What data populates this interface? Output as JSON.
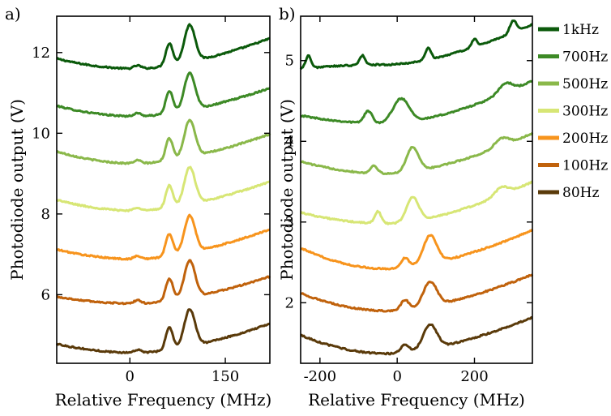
{
  "chart_data": [
    {
      "type": "line",
      "panel_label": "a)",
      "xlabel": "Relative Frequency (MHz)",
      "ylabel": "Photodiode output (V)",
      "xlim": [
        -115,
        220
      ],
      "ylim": [
        4.3,
        12.9
      ],
      "xticks": [
        0,
        150
      ],
      "yticks": [
        6,
        8,
        10,
        12
      ],
      "series": [
        {
          "name": "1kHz",
          "color": "#0b5a0b",
          "base": 11.6,
          "start": 11.85,
          "end": 12.35,
          "peaks": [
            [
              12,
              0.08,
              8
            ],
            [
              62,
              0.55,
              8
            ],
            [
              94,
              0.92,
              12
            ]
          ]
        },
        {
          "name": "700Hz",
          "color": "#3d8a26",
          "base": 10.42,
          "start": 10.68,
          "end": 11.12,
          "peaks": [
            [
              12,
              0.08,
              8
            ],
            [
              62,
              0.55,
              8
            ],
            [
              94,
              0.92,
              12
            ]
          ]
        },
        {
          "name": "500Hz",
          "color": "#8ab84a",
          "base": 9.25,
          "start": 9.55,
          "end": 9.98,
          "peaks": [
            [
              12,
              0.08,
              8
            ],
            [
              62,
              0.55,
              8
            ],
            [
              94,
              0.92,
              12
            ]
          ]
        },
        {
          "name": "300Hz",
          "color": "#d7e675",
          "base": 8.08,
          "start": 8.35,
          "end": 8.8,
          "peaks": [
            [
              12,
              0.08,
              8
            ],
            [
              62,
              0.55,
              8
            ],
            [
              94,
              0.92,
              12
            ]
          ]
        },
        {
          "name": "200Hz",
          "color": "#f7941d",
          "base": 6.88,
          "start": 7.12,
          "end": 7.62,
          "peaks": [
            [
              12,
              0.08,
              8
            ],
            [
              62,
              0.55,
              8
            ],
            [
              94,
              0.92,
              12
            ]
          ]
        },
        {
          "name": "100Hz",
          "color": "#c0620c",
          "base": 5.78,
          "start": 5.95,
          "end": 6.45,
          "peaks": [
            [
              12,
              0.08,
              8
            ],
            [
              62,
              0.55,
              8
            ],
            [
              94,
              0.92,
              12
            ]
          ]
        },
        {
          "name": "80Hz",
          "color": "#5a3a0a",
          "base": 4.56,
          "start": 4.78,
          "end": 5.28,
          "peaks": [
            [
              12,
              0.08,
              8
            ],
            [
              62,
              0.55,
              8
            ],
            [
              94,
              0.92,
              12
            ]
          ]
        }
      ]
    },
    {
      "type": "line",
      "panel_label": "b)",
      "xlabel": "Relative Frequency (MHz)",
      "ylabel": "Photodiode output (V)",
      "xlim": [
        -250,
        350
      ],
      "ylim": [
        1.25,
        5.55
      ],
      "xticks": [
        -200,
        0,
        200
      ],
      "yticks": [
        2,
        3,
        4,
        5
      ],
      "series": [
        {
          "name": "1kHz",
          "color": "#0b5a0b",
          "base": 4.95,
          "start": 4.9,
          "end": 5.45,
          "peaks": [
            [
              -230,
              0.15,
              10
            ],
            [
              -90,
              0.12,
              10
            ],
            [
              80,
              0.15,
              10
            ],
            [
              200,
              0.1,
              10
            ],
            [
              300,
              0.15,
              12
            ]
          ]
        },
        {
          "name": "700Hz",
          "color": "#3d8a26",
          "base": 4.22,
          "start": 4.32,
          "end": 4.75,
          "peaks": [
            [
              -75,
              0.15,
              15
            ],
            [
              10,
              0.3,
              30
            ],
            [
              280,
              0.12,
              25
            ]
          ]
        },
        {
          "name": "500Hz",
          "color": "#8ab84a",
          "base": 3.6,
          "start": 3.75,
          "end": 4.1,
          "peaks": [
            [
              -60,
              0.1,
              12
            ],
            [
              40,
              0.3,
              22
            ],
            [
              270,
              0.1,
              25
            ]
          ]
        },
        {
          "name": "300Hz",
          "color": "#d7e675",
          "base": 2.98,
          "start": 3.12,
          "end": 3.5,
          "peaks": [
            [
              -50,
              0.15,
              12
            ],
            [
              40,
              0.3,
              22
            ],
            [
              270,
              0.1,
              25
            ]
          ]
        },
        {
          "name": "200Hz",
          "color": "#f7941d",
          "base": 2.42,
          "start": 2.68,
          "end": 2.9,
          "peaks": [
            [
              20,
              0.12,
              15
            ],
            [
              85,
              0.35,
              25
            ]
          ]
        },
        {
          "name": "100Hz",
          "color": "#c0620c",
          "base": 1.9,
          "start": 2.12,
          "end": 2.35,
          "peaks": [
            [
              20,
              0.12,
              15
            ],
            [
              85,
              0.3,
              25
            ]
          ]
        },
        {
          "name": "80Hz",
          "color": "#5a3a0a",
          "base": 1.37,
          "start": 1.6,
          "end": 1.82,
          "peaks": [
            [
              20,
              0.1,
              15
            ],
            [
              85,
              0.3,
              25
            ]
          ]
        }
      ]
    }
  ],
  "legend": {
    "placement": "right",
    "entries": [
      {
        "label": "1kHz",
        "color": "#0b5a0b"
      },
      {
        "label": "700Hz",
        "color": "#3d8a26"
      },
      {
        "label": "500Hz",
        "color": "#8ab84a"
      },
      {
        "label": "300Hz",
        "color": "#d7e675"
      },
      {
        "label": "200Hz",
        "color": "#f7941d"
      },
      {
        "label": "100Hz",
        "color": "#c0620c"
      },
      {
        "label": "80Hz",
        "color": "#5a3a0a"
      }
    ]
  }
}
